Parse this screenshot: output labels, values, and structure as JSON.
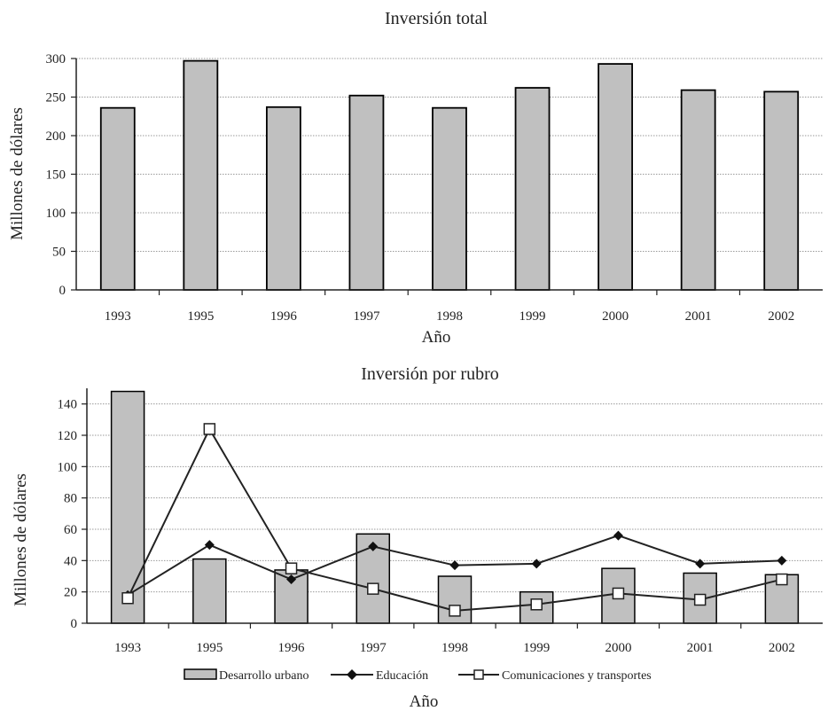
{
  "chart_data": [
    {
      "type": "bar",
      "title": "Inversión total",
      "xlabel": "Año",
      "ylabel": "Millones de dólares",
      "categories": [
        "1993",
        "1995",
        "1996",
        "1997",
        "1998",
        "1999",
        "2000",
        "2001",
        "2002"
      ],
      "values": [
        236,
        297,
        237,
        252,
        236,
        262,
        293,
        259,
        257
      ],
      "ylim": [
        0,
        300
      ],
      "yticks": [
        "0",
        "50",
        "100",
        "150",
        "200",
        "250",
        "300"
      ],
      "grid": true,
      "bar_color": "#c0c0c0"
    },
    {
      "type": "bar",
      "title": "Inversión por rubro",
      "xlabel": "Año",
      "ylabel": "Millones de dólares",
      "categories": [
        "1993",
        "1995",
        "1996",
        "1997",
        "1998",
        "1999",
        "2000",
        "2001",
        "2002"
      ],
      "ylim": [
        0,
        150
      ],
      "yticks": [
        "0",
        "20",
        "40",
        "60",
        "80",
        "100",
        "120",
        "140"
      ],
      "grid": true,
      "legend_position": "bottom",
      "series": [
        {
          "name": "Desarrollo urbano",
          "kind": "bar",
          "values": [
            148,
            41,
            34,
            57,
            30,
            20,
            35,
            32,
            31
          ]
        },
        {
          "name": "Educación",
          "kind": "line",
          "marker": "diamond",
          "values": [
            18,
            50,
            28,
            49,
            37,
            38,
            56,
            38,
            40
          ]
        },
        {
          "name": "Comunicaciones y transportes",
          "kind": "line",
          "marker": "square",
          "values": [
            16,
            124,
            35,
            22,
            8,
            12,
            19,
            15,
            28
          ]
        }
      ]
    }
  ]
}
